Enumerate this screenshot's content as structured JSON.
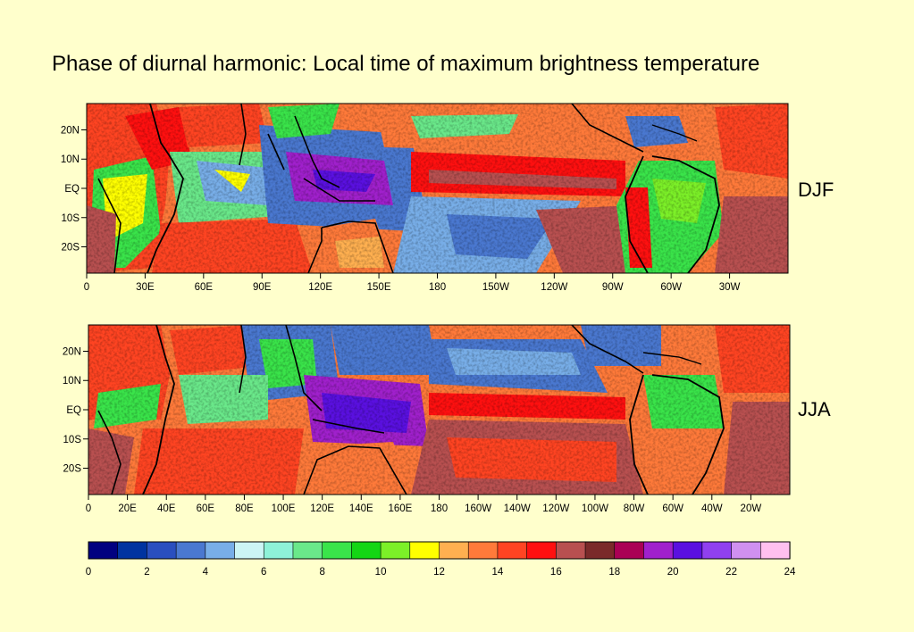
{
  "title": "Phase of diurnal harmonic: Local time of maximum brightness temperature",
  "panels": [
    {
      "label": "DJF",
      "lat_labels": [
        "20N",
        "10N",
        "EQ",
        "10S",
        "20S"
      ],
      "lon_labels": [
        "0",
        "30E",
        "60E",
        "90E",
        "120E",
        "150E",
        "180",
        "150W",
        "120W",
        "90W",
        "60W",
        "30W"
      ]
    },
    {
      "label": "JJA",
      "lat_labels": [
        "20N",
        "10N",
        "EQ",
        "10S",
        "20S"
      ],
      "lon_labels": [
        "0",
        "20E",
        "40E",
        "60E",
        "80E",
        "100E",
        "120E",
        "140E",
        "160E",
        "180",
        "160W",
        "140W",
        "120W",
        "100W",
        "80W",
        "60W",
        "40W",
        "20W"
      ]
    }
  ],
  "colorbar": {
    "labels": [
      "0",
      "2",
      "4",
      "6",
      "8",
      "10",
      "12",
      "14",
      "16",
      "18",
      "20",
      "22",
      "24"
    ],
    "colors": [
      "#000080",
      "#0033a0",
      "#2a4fbf",
      "#4a78d0",
      "#78aee8",
      "#ccf5f5",
      "#8ef2d8",
      "#6ae88a",
      "#3ae44a",
      "#14d614",
      "#7cf028",
      "#ffff00",
      "#ffb050",
      "#ff7a3a",
      "#ff4422",
      "#ff1010",
      "#b85050",
      "#7a2a2a",
      "#aa0055",
      "#a020cc",
      "#5a10e0",
      "#9040f0",
      "#d090f0",
      "#ffc0f0"
    ]
  }
}
